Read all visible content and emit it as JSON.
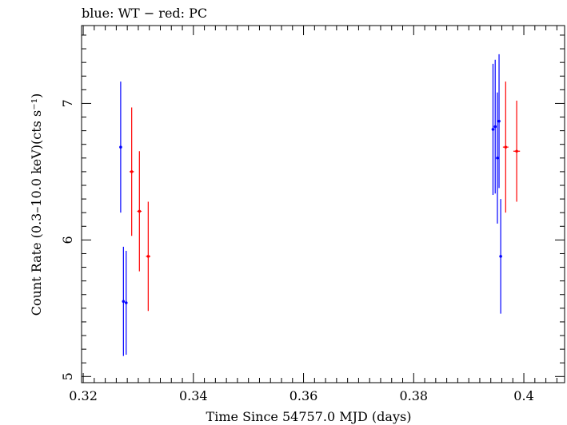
{
  "chart_data": {
    "type": "scatter",
    "title": "blue: WT − red: PC",
    "xlabel": "Time Since 54757.0 MJD (days)",
    "ylabel": "Count Rate (0.3–10.0 keV)(cts s⁻¹)",
    "xlim": [
      0.3197,
      0.4074
    ],
    "ylim": [
      4.955,
      7.57
    ],
    "x_ticks": [
      0.32,
      0.34,
      0.36,
      0.38,
      0.4
    ],
    "x_tick_labels": [
      "0.32",
      "0.34",
      "0.36",
      "0.38",
      "0.4"
    ],
    "y_ticks": [
      5,
      6,
      7
    ],
    "y_tick_labels": [
      "5",
      "6",
      "7"
    ],
    "grid": false,
    "series": [
      {
        "name": "WT",
        "color": "#0000ff",
        "points": [
          {
            "x": 0.3268,
            "y": 6.68,
            "yerr": 0.48
          },
          {
            "x": 0.3273,
            "y": 5.55,
            "yerr": 0.4
          },
          {
            "x": 0.3278,
            "y": 5.54,
            "yerr": 0.38
          },
          {
            "x": 0.3944,
            "y": 6.81,
            "yerr": 0.48
          },
          {
            "x": 0.3948,
            "y": 6.83,
            "yerr": 0.49
          },
          {
            "x": 0.3952,
            "y": 6.6,
            "yerr": 0.48
          },
          {
            "x": 0.3955,
            "y": 6.87,
            "yerr": 0.49
          },
          {
            "x": 0.3958,
            "y": 5.88,
            "yerr": 0.42
          }
        ]
      },
      {
        "name": "PC",
        "color": "#ff0000",
        "points": [
          {
            "x": 0.3288,
            "y": 6.5,
            "yerr": 0.47,
            "xerr": 0.0004
          },
          {
            "x": 0.3302,
            "y": 6.21,
            "yerr": 0.44,
            "xerr": 0.0004
          },
          {
            "x": 0.3318,
            "y": 5.88,
            "yerr": 0.4,
            "xerr": 0.0004
          },
          {
            "x": 0.3967,
            "y": 6.68,
            "yerr": 0.48,
            "xerr": 0.0005
          },
          {
            "x": 0.3987,
            "y": 6.65,
            "yerr": 0.37,
            "xerr": 0.0006
          }
        ]
      }
    ]
  }
}
